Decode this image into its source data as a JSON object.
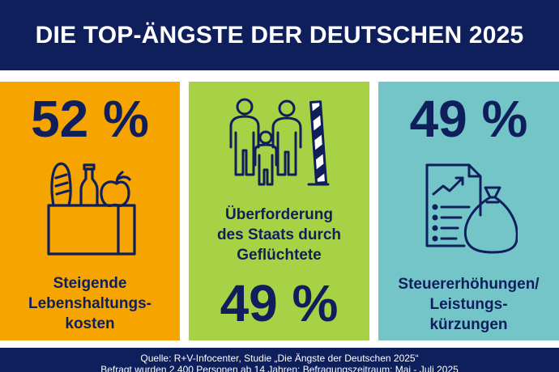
{
  "header": {
    "title": "DIE TOP-ÄNGSTE DER DEUTSCHEN 2025"
  },
  "colors": {
    "navy": "#0f1f5c",
    "orange": "#f5a400",
    "green": "#a8d246",
    "teal": "#73c5c8"
  },
  "cards": [
    {
      "value": "52 %",
      "label_lines": [
        "Steigende",
        "Lebenshaltungs-",
        "kosten"
      ],
      "color": "#f5a400",
      "icon": "grocery-bag-icon"
    },
    {
      "value": "49 %",
      "label_lines": [
        "Überforderung",
        "des Staats durch",
        "Geflüchtete"
      ],
      "color": "#a8d246",
      "icon": "family-border-icon"
    },
    {
      "value": "49 %",
      "label_lines": [
        "Steuererhöhungen/",
        "Leistungs-",
        "kürzungen"
      ],
      "color": "#73c5c8",
      "icon": "tax-document-money-bag-icon"
    }
  ],
  "footer": {
    "source": "Quelle: R+V-Infocenter, Studie „Die Ängste der Deutschen 2025“",
    "method": "Befragt wurden 2.400 Personen ab 14 Jahren; Befragungszeitraum: Mai - Juli 2025"
  },
  "chart_data": {
    "type": "bar",
    "title": "DIE TOP-ÄNGSTE DER DEUTSCHEN 2025",
    "categories": [
      "Steigende Lebenshaltungskosten",
      "Überforderung des Staats durch Geflüchtete",
      "Steuererhöhungen/Leistungskürzungen"
    ],
    "values": [
      52,
      49,
      49
    ],
    "unit": "%"
  }
}
